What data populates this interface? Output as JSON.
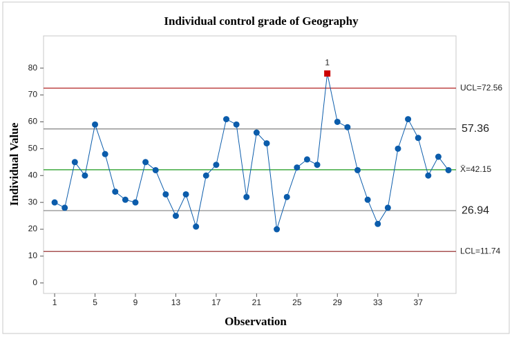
{
  "chart_data": {
    "type": "control",
    "title": "Individual control grade of Geography",
    "x_label": "Observation",
    "y_label": "Individual Value",
    "x": [
      1,
      2,
      3,
      4,
      5,
      6,
      7,
      8,
      9,
      10,
      11,
      12,
      13,
      14,
      15,
      16,
      17,
      18,
      19,
      20,
      21,
      22,
      23,
      24,
      25,
      26,
      27,
      28,
      29,
      30,
      31,
      32,
      33,
      34,
      35,
      36,
      37,
      38,
      39,
      40
    ],
    "series": [
      {
        "name": "Geography",
        "color": "#0b5cab",
        "values": [
          30,
          28,
          45,
          40,
          59,
          48,
          34,
          31,
          30,
          45,
          42,
          33,
          25,
          33,
          21,
          40,
          44,
          61,
          59,
          32,
          56,
          52,
          20,
          32,
          43,
          46,
          44,
          78,
          60,
          58,
          42,
          31,
          22,
          28,
          50,
          61,
          54,
          40,
          47,
          42
        ]
      }
    ],
    "xlim": [
      -0.1,
      40.75
    ],
    "ylim": [
      -3.9,
      92
    ],
    "xticks": [
      1,
      5,
      9,
      13,
      17,
      21,
      25,
      29,
      33,
      37
    ],
    "yticks": [
      0,
      10,
      20,
      30,
      40,
      50,
      60,
      70,
      80
    ],
    "reference_lines": [
      {
        "value": 72.56,
        "label": "UCL=72.56",
        "color": "#b22222"
      },
      {
        "value": 57.36,
        "label": "57.36",
        "color": "#808080"
      },
      {
        "value": 42.15,
        "label": "X̄=42.15",
        "color": "#1a9a1a"
      },
      {
        "value": 26.94,
        "label": "26.94",
        "color": "#808080"
      },
      {
        "value": 11.74,
        "label": "LCL=11.74",
        "color": "#8b1a1a"
      }
    ],
    "annotations": [
      {
        "text": "1",
        "x": 28,
        "color": "#cc0000"
      }
    ]
  }
}
